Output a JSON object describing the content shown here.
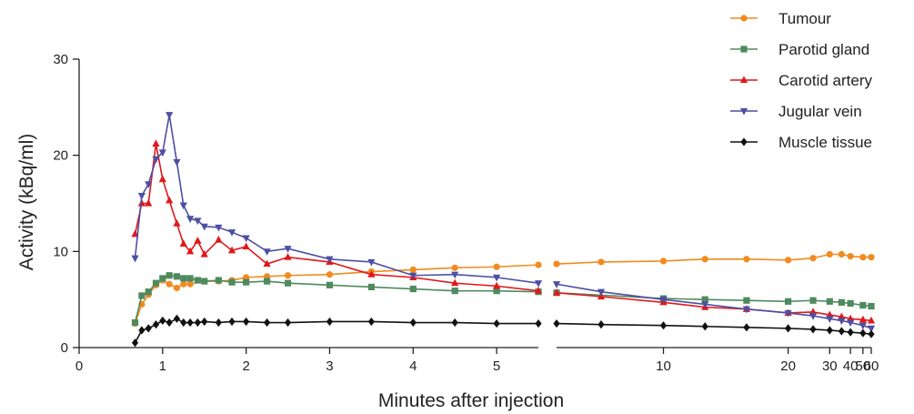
{
  "chart_data": {
    "type": "line",
    "xlabel": "Minutes after injection",
    "ylabel": "Activity (kBq/ml)",
    "ylim": [
      0,
      30
    ],
    "yticks": [
      0,
      10,
      20,
      30
    ],
    "x_axis_segments": [
      {
        "range": [
          0,
          5.5
        ],
        "ticks": [
          0,
          1,
          2,
          3,
          4,
          5
        ]
      },
      {
        "range": [
          7,
          60
        ],
        "ticks": [
          10,
          20,
          30,
          40,
          50,
          60
        ],
        "scale": "reciprocal"
      }
    ],
    "x_tick_labels": [
      "0",
      "1",
      "2",
      "3",
      "4",
      "5",
      "10",
      "20",
      "30",
      "40",
      "50",
      "60"
    ],
    "y_tick_labels": [
      "0",
      "10",
      "20",
      "30"
    ],
    "legend_position": "top-right",
    "series": [
      {
        "name": "Tumour",
        "color": "#f28a1e",
        "marker": "circle",
        "segment1": [
          [
            0.67,
            2.5
          ],
          [
            0.75,
            4.5
          ],
          [
            0.83,
            5.5
          ],
          [
            0.92,
            6.5
          ],
          [
            1.0,
            7.0
          ],
          [
            1.08,
            6.6
          ],
          [
            1.17,
            6.2
          ],
          [
            1.25,
            6.6
          ],
          [
            1.33,
            6.6
          ],
          [
            1.5,
            6.9
          ],
          [
            1.67,
            6.9
          ],
          [
            1.83,
            7.0
          ],
          [
            2.0,
            7.3
          ],
          [
            2.25,
            7.4
          ],
          [
            2.5,
            7.5
          ],
          [
            3.0,
            7.6
          ],
          [
            3.5,
            7.9
          ],
          [
            4.0,
            8.1
          ],
          [
            4.5,
            8.3
          ],
          [
            5.0,
            8.4
          ],
          [
            5.5,
            8.6
          ]
        ],
        "segment2": [
          [
            7,
            8.7
          ],
          [
            8,
            8.9
          ],
          [
            10,
            9.0
          ],
          [
            12,
            9.2
          ],
          [
            15,
            9.2
          ],
          [
            20,
            9.1
          ],
          [
            25,
            9.3
          ],
          [
            30,
            9.7
          ],
          [
            35,
            9.7
          ],
          [
            40,
            9.5
          ],
          [
            50,
            9.4
          ],
          [
            60,
            9.4
          ]
        ]
      },
      {
        "name": "Parotid gland",
        "color": "#4f8a5e",
        "marker": "square",
        "segment1": [
          [
            0.67,
            2.6
          ],
          [
            0.75,
            5.4
          ],
          [
            0.83,
            5.8
          ],
          [
            0.92,
            6.7
          ],
          [
            1.0,
            7.2
          ],
          [
            1.08,
            7.5
          ],
          [
            1.17,
            7.4
          ],
          [
            1.25,
            7.2
          ],
          [
            1.33,
            7.2
          ],
          [
            1.42,
            7.0
          ],
          [
            1.5,
            6.9
          ],
          [
            1.67,
            7.0
          ],
          [
            1.83,
            6.8
          ],
          [
            2.0,
            6.8
          ],
          [
            2.25,
            6.9
          ],
          [
            2.5,
            6.7
          ],
          [
            3.0,
            6.5
          ],
          [
            3.5,
            6.3
          ],
          [
            4.0,
            6.1
          ],
          [
            4.5,
            5.9
          ],
          [
            5.0,
            5.9
          ],
          [
            5.5,
            5.8
          ]
        ],
        "segment2": [
          [
            7,
            5.7
          ],
          [
            10,
            5.1
          ],
          [
            12,
            5.0
          ],
          [
            15,
            4.9
          ],
          [
            20,
            4.8
          ],
          [
            25,
            4.9
          ],
          [
            30,
            4.8
          ],
          [
            35,
            4.7
          ],
          [
            40,
            4.6
          ],
          [
            50,
            4.4
          ],
          [
            60,
            4.3
          ]
        ]
      },
      {
        "name": "Carotid artery",
        "color": "#e0181b",
        "marker": "triangle-up",
        "segment1": [
          [
            0.67,
            11.8
          ],
          [
            0.75,
            15.0
          ],
          [
            0.83,
            15.0
          ],
          [
            0.92,
            21.2
          ],
          [
            1.0,
            17.5
          ],
          [
            1.08,
            15.3
          ],
          [
            1.17,
            12.9
          ],
          [
            1.25,
            10.8
          ],
          [
            1.33,
            10.0
          ],
          [
            1.42,
            11.1
          ],
          [
            1.5,
            9.7
          ],
          [
            1.67,
            11.2
          ],
          [
            1.83,
            10.1
          ],
          [
            2.0,
            10.5
          ],
          [
            2.25,
            8.7
          ],
          [
            2.5,
            9.4
          ],
          [
            3.0,
            8.9
          ],
          [
            3.5,
            7.6
          ],
          [
            4.0,
            7.3
          ],
          [
            4.5,
            6.7
          ],
          [
            5.0,
            6.4
          ],
          [
            5.5,
            5.9
          ]
        ],
        "segment2": [
          [
            7,
            5.7
          ],
          [
            8,
            5.3
          ],
          [
            10,
            4.7
          ],
          [
            12,
            4.2
          ],
          [
            15,
            4.0
          ],
          [
            20,
            3.6
          ],
          [
            25,
            3.7
          ],
          [
            30,
            3.4
          ],
          [
            35,
            3.2
          ],
          [
            40,
            3.0
          ],
          [
            50,
            2.9
          ],
          [
            60,
            2.8
          ]
        ]
      },
      {
        "name": "Jugular vein",
        "color": "#4c4fa3",
        "marker": "triangle-down",
        "segment1": [
          [
            0.67,
            9.3
          ],
          [
            0.75,
            15.8
          ],
          [
            0.83,
            17.0
          ],
          [
            0.92,
            19.6
          ],
          [
            1.0,
            20.3
          ],
          [
            1.08,
            24.2
          ],
          [
            1.17,
            19.3
          ],
          [
            1.25,
            14.8
          ],
          [
            1.33,
            13.4
          ],
          [
            1.42,
            13.2
          ],
          [
            1.5,
            12.6
          ],
          [
            1.67,
            12.5
          ],
          [
            1.83,
            12.0
          ],
          [
            2.0,
            11.4
          ],
          [
            2.25,
            10.0
          ],
          [
            2.5,
            10.3
          ],
          [
            3.0,
            9.2
          ],
          [
            3.5,
            8.9
          ],
          [
            4.0,
            7.5
          ],
          [
            4.5,
            7.6
          ],
          [
            5.0,
            7.3
          ],
          [
            5.5,
            6.7
          ]
        ],
        "segment2": [
          [
            7,
            6.6
          ],
          [
            8,
            5.8
          ],
          [
            10,
            5.0
          ],
          [
            12,
            4.5
          ],
          [
            15,
            4.0
          ],
          [
            20,
            3.6
          ],
          [
            25,
            3.3
          ],
          [
            30,
            3.0
          ],
          [
            35,
            2.8
          ],
          [
            40,
            2.6
          ],
          [
            50,
            2.3
          ],
          [
            60,
            2.0
          ]
        ]
      },
      {
        "name": "Muscle tissue",
        "color": "#111111",
        "marker": "diamond",
        "segment1": [
          [
            0.67,
            0.5
          ],
          [
            0.75,
            1.8
          ],
          [
            0.83,
            2.0
          ],
          [
            0.92,
            2.4
          ],
          [
            1.0,
            2.8
          ],
          [
            1.08,
            2.6
          ],
          [
            1.17,
            3.0
          ],
          [
            1.25,
            2.6
          ],
          [
            1.33,
            2.6
          ],
          [
            1.42,
            2.6
          ],
          [
            1.5,
            2.7
          ],
          [
            1.67,
            2.6
          ],
          [
            1.83,
            2.7
          ],
          [
            2.0,
            2.7
          ],
          [
            2.25,
            2.6
          ],
          [
            2.5,
            2.6
          ],
          [
            3.0,
            2.7
          ],
          [
            3.5,
            2.7
          ],
          [
            4.0,
            2.6
          ],
          [
            4.5,
            2.6
          ],
          [
            5.0,
            2.5
          ],
          [
            5.5,
            2.5
          ]
        ],
        "segment2": [
          [
            7,
            2.5
          ],
          [
            8,
            2.4
          ],
          [
            10,
            2.3
          ],
          [
            12,
            2.2
          ],
          [
            15,
            2.1
          ],
          [
            20,
            2.0
          ],
          [
            25,
            1.9
          ],
          [
            30,
            1.8
          ],
          [
            35,
            1.7
          ],
          [
            40,
            1.6
          ],
          [
            50,
            1.5
          ],
          [
            60,
            1.4
          ]
        ]
      }
    ]
  }
}
